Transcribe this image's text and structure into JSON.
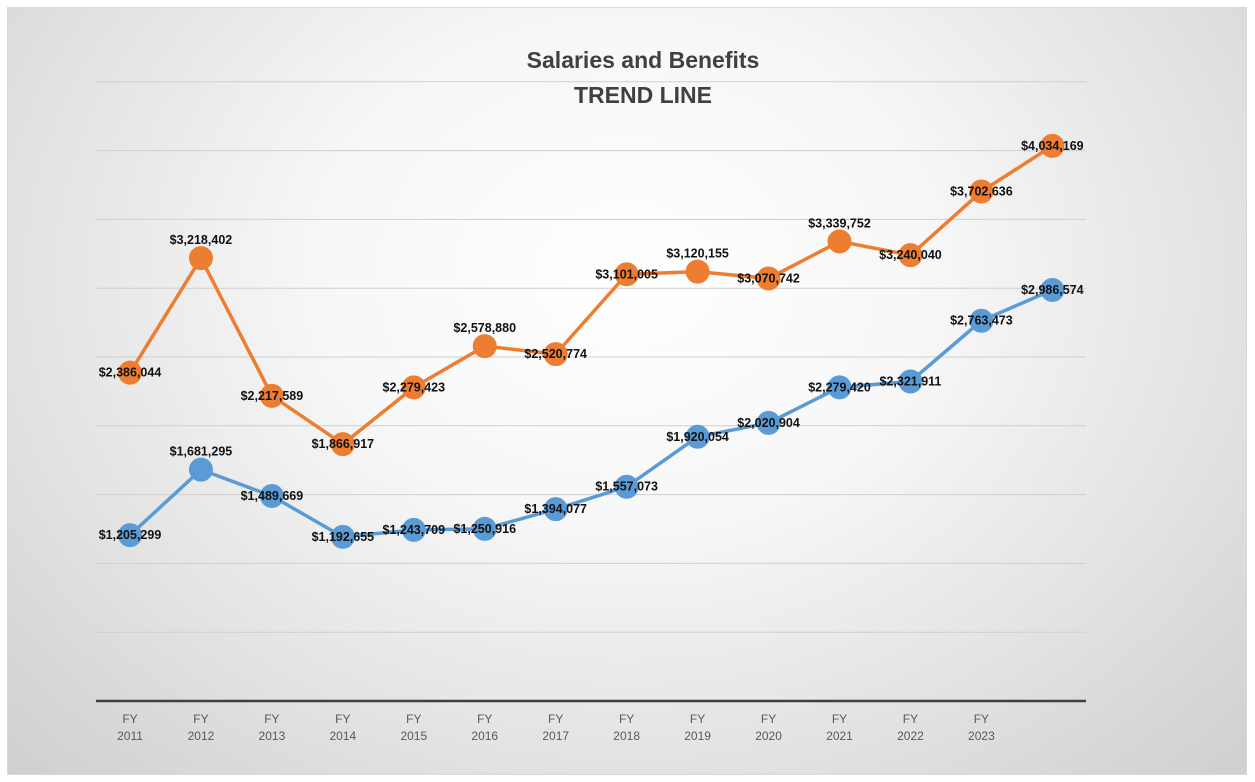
{
  "chart_data": {
    "type": "line",
    "title": "Salaries and Benefits",
    "subtitle": "TREND LINE",
    "x_tick_labels": [
      [
        "FY",
        "2011"
      ],
      [
        "FY",
        "2012"
      ],
      [
        "FY",
        "2013"
      ],
      [
        "FY",
        "2014"
      ],
      [
        "FY",
        "2015"
      ],
      [
        "FY",
        "2016"
      ],
      [
        "FY",
        "2017"
      ],
      [
        "FY",
        "2018"
      ],
      [
        "FY",
        "2019"
      ],
      [
        "FY",
        "2020"
      ],
      [
        "FY",
        "2021"
      ],
      [
        "FY",
        "2022"
      ],
      [
        "FY",
        "2023"
      ],
      [
        "",
        ""
      ]
    ],
    "ylim": [
      0,
      4500000
    ],
    "y_grid_step": 500000,
    "grid": true,
    "legend": "none",
    "series": [
      {
        "color": "#ED7D31",
        "values": [
          2386044,
          3218402,
          2217589,
          1866917,
          2279423,
          2578880,
          2520774,
          3101005,
          3120155,
          3070742,
          3339752,
          3240040,
          3702636,
          4034169
        ],
        "labels": [
          "$2,386,044",
          "$3,218,402",
          "$2,217,589",
          "$1,866,917",
          "$2,279,423",
          "$2,578,880",
          "$2,520,774",
          "$3,101,005",
          "$3,120,155",
          "$3,070,742",
          "$3,339,752",
          "$3,240,040",
          "$3,702,636",
          "$4,034,169"
        ]
      },
      {
        "color": "#5B9BD5",
        "values": [
          1205299,
          1681295,
          1489669,
          1192655,
          1243709,
          1250916,
          1394077,
          1557073,
          1920054,
          2020904,
          2279420,
          2321911,
          2763473,
          2986574
        ],
        "labels": [
          "$1,205,299",
          "$1,681,295",
          "$1,489,669",
          "$1,192,655",
          "$1,243,709",
          "$1,250,916",
          "$1,394,077",
          "$1,557,073",
          "$1,920,054",
          "$2,020,904",
          "$2,279,420",
          "$2,321,911",
          "$2,763,473",
          "$2,986,574"
        ]
      }
    ]
  }
}
